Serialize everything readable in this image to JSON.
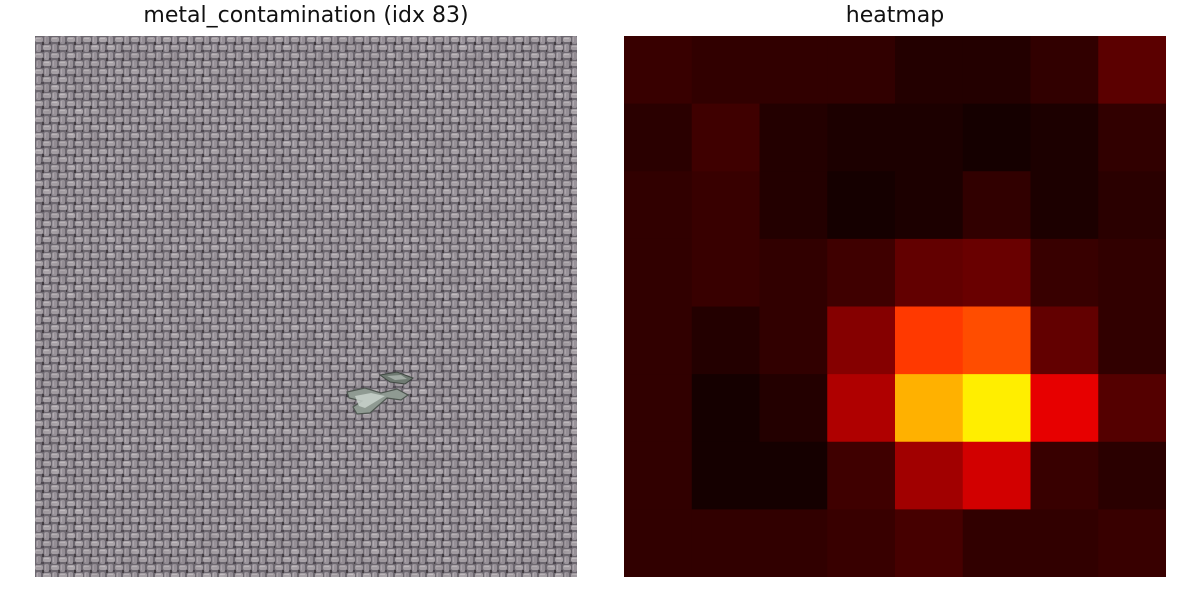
{
  "left_panel": {
    "title": "metal_contamination (idx 83)",
    "image_description_icon": "woven-fabric-texture-icon"
  },
  "right_panel": {
    "title": "heatmap",
    "grid": {
      "rows": 8,
      "cols": 8,
      "colormap": "hot",
      "values": [
        [
          0.08,
          0.07,
          0.07,
          0.07,
          0.05,
          0.05,
          0.07,
          0.13
        ],
        [
          0.06,
          0.09,
          0.05,
          0.04,
          0.04,
          0.03,
          0.04,
          0.07
        ],
        [
          0.07,
          0.08,
          0.05,
          0.03,
          0.04,
          0.07,
          0.04,
          0.06
        ],
        [
          0.07,
          0.08,
          0.07,
          0.09,
          0.14,
          0.15,
          0.08,
          0.07
        ],
        [
          0.07,
          0.05,
          0.07,
          0.19,
          0.45,
          0.48,
          0.14,
          0.07
        ],
        [
          0.07,
          0.03,
          0.05,
          0.25,
          0.63,
          0.72,
          0.33,
          0.12
        ],
        [
          0.07,
          0.03,
          0.03,
          0.09,
          0.23,
          0.3,
          0.08,
          0.06
        ],
        [
          0.07,
          0.07,
          0.07,
          0.08,
          0.1,
          0.07,
          0.07,
          0.08
        ]
      ]
    }
  }
}
